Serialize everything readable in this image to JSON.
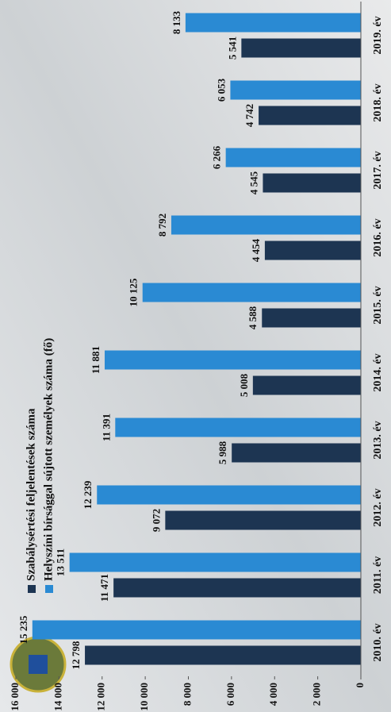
{
  "chart_data": {
    "type": "bar",
    "categories": [
      "2010. év",
      "2011. év",
      "2012. év",
      "2013. év",
      "2014. év",
      "2015. év",
      "2016. év",
      "2017. év",
      "2018. év",
      "2019. év"
    ],
    "series": [
      {
        "name": "Szabálysértési feljelentések száma",
        "color": "#1d3552",
        "values": [
          12798,
          11471,
          9072,
          5988,
          5008,
          4588,
          4454,
          4545,
          4742,
          5541
        ],
        "value_labels": [
          "12 798",
          "11 471",
          "9 072",
          "5 988",
          "5 008",
          "4 588",
          "4 454",
          "4 545",
          "4 742",
          "5 541"
        ]
      },
      {
        "name": "Helyszíni bírsággal sújtott személyek száma (fő)",
        "color": "#2a8ad3",
        "values": [
          15235,
          13511,
          12239,
          11391,
          11881,
          10125,
          8792,
          6266,
          6053,
          8133
        ],
        "value_labels": [
          "15 235",
          "13 511",
          "12 239",
          "11 391",
          "11 881",
          "10 125",
          "8 792",
          "6 266",
          "6 053",
          "8 133"
        ]
      }
    ],
    "ylim": [
      0,
      16000
    ],
    "yticks": [
      0,
      {
        "value": 2000,
        "label": "2 000"
      },
      {
        "value": 4000,
        "label": "4 000"
      },
      {
        "value": 6000,
        "label": "6 000"
      },
      {
        "value": 8000,
        "label": "8 000"
      },
      {
        "value": 10000,
        "label": "10 000"
      },
      {
        "value": 12000,
        "label": "12 000"
      },
      {
        "value": 14000,
        "label": "14 000"
      },
      {
        "value": 16000,
        "label": "16 000"
      }
    ],
    "grid": false
  }
}
